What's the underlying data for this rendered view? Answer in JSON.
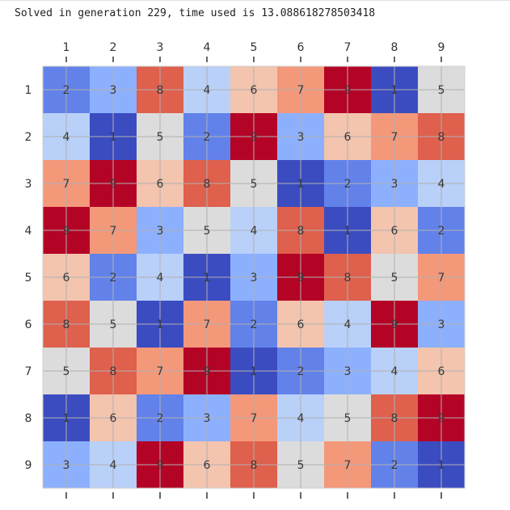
{
  "output": {
    "status_text": "Solved in generation 229, time used is 13.088618278503418"
  },
  "chart_data": {
    "type": "heatmap",
    "title": "",
    "xlabel": "",
    "ylabel": "",
    "x_ticks": [
      "1",
      "2",
      "3",
      "4",
      "5",
      "6",
      "7",
      "8",
      "9"
    ],
    "y_ticks": [
      "1",
      "2",
      "3",
      "4",
      "5",
      "6",
      "7",
      "8",
      "9"
    ],
    "x_tick_position": "top and bottom",
    "grid": true,
    "colormap": "coolwarm",
    "color_scale": {
      "1": "#3b4cc0",
      "2": "#6282ea",
      "3": "#8db0fe",
      "4": "#b9d0f9",
      "5": "#dddcdc",
      "6": "#f3c4ae",
      "7": "#f4987a",
      "8": "#de604d",
      "9": "#b40426"
    },
    "grid_color": "#b0b0b0",
    "text_color": "#3a3a3a",
    "values": [
      [
        2,
        3,
        8,
        4,
        6,
        7,
        9,
        1,
        5
      ],
      [
        4,
        1,
        5,
        2,
        9,
        3,
        6,
        7,
        8
      ],
      [
        7,
        9,
        6,
        8,
        5,
        1,
        2,
        3,
        4
      ],
      [
        9,
        7,
        3,
        5,
        4,
        8,
        1,
        6,
        2
      ],
      [
        6,
        2,
        4,
        1,
        3,
        9,
        8,
        5,
        7
      ],
      [
        8,
        5,
        1,
        7,
        2,
        6,
        4,
        9,
        3
      ],
      [
        5,
        8,
        7,
        9,
        1,
        2,
        3,
        4,
        6
      ],
      [
        1,
        6,
        2,
        3,
        7,
        4,
        5,
        8,
        9
      ],
      [
        3,
        4,
        9,
        6,
        8,
        5,
        7,
        2,
        1
      ]
    ]
  }
}
